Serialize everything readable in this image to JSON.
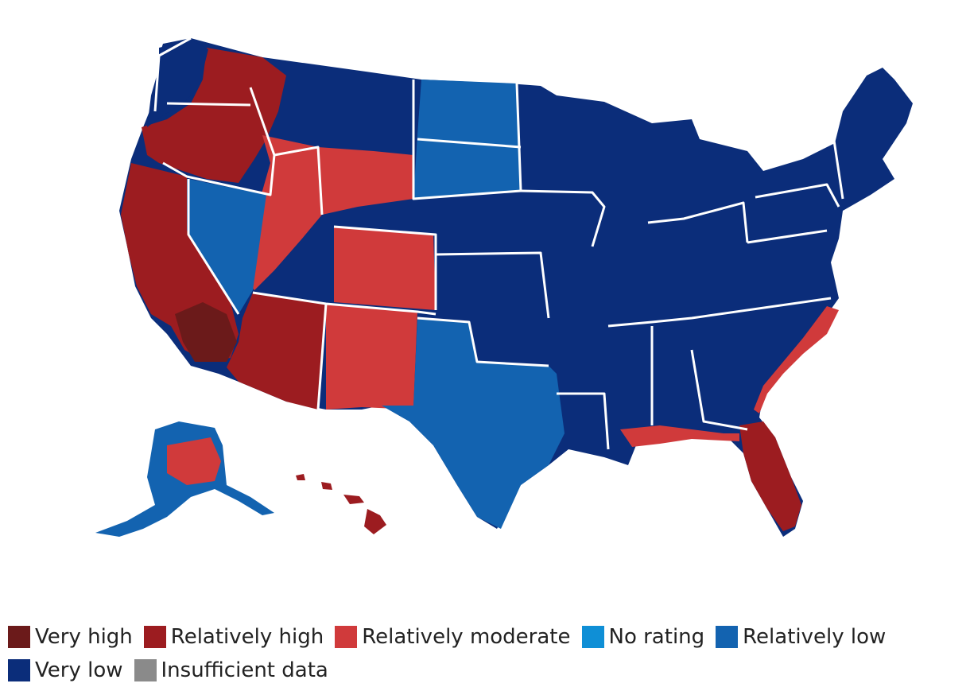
{
  "map": {
    "subject": "United States counties risk rating map",
    "colors": {
      "very_high": "#6b1a1a",
      "relatively_high": "#9c1c20",
      "relatively_moderate": "#d03a3b",
      "no_rating": "#0f8fd6",
      "relatively_low": "#1363b0",
      "very_low": "#0b2d7a",
      "insufficient_data": "#8a8a8a",
      "border": "#ffffff"
    },
    "regions": [
      {
        "name": "pacific-northwest",
        "rating": "relatively_high"
      },
      {
        "name": "california",
        "rating": "relatively_high"
      },
      {
        "name": "southern-california",
        "rating": "very_high"
      },
      {
        "name": "nevada",
        "rating": "relatively_low"
      },
      {
        "name": "intermountain-west",
        "rating": "relatively_moderate"
      },
      {
        "name": "arizona",
        "rating": "relatively_high"
      },
      {
        "name": "new-mexico",
        "rating": "relatively_moderate"
      },
      {
        "name": "northern-plains",
        "rating": "relatively_low"
      },
      {
        "name": "central-plains",
        "rating": "very_low"
      },
      {
        "name": "texas",
        "rating": "relatively_low"
      },
      {
        "name": "midwest",
        "rating": "very_low"
      },
      {
        "name": "southeast",
        "rating": "very_low"
      },
      {
        "name": "florida",
        "rating": "relatively_high"
      },
      {
        "name": "northeast",
        "rating": "very_low"
      },
      {
        "name": "alaska",
        "rating": "relatively_low"
      },
      {
        "name": "hawaii",
        "rating": "relatively_high"
      }
    ]
  },
  "legend": {
    "items": [
      {
        "key": "very_high",
        "label": "Very high",
        "color": "#6b1a1a"
      },
      {
        "key": "relatively_high",
        "label": "Relatively high",
        "color": "#9c1c20"
      },
      {
        "key": "relatively_moderate",
        "label": "Relatively moderate",
        "color": "#d03a3b"
      },
      {
        "key": "no_rating",
        "label": "No rating",
        "color": "#0f8fd6"
      },
      {
        "key": "relatively_low",
        "label": "Relatively low",
        "color": "#1363b0"
      },
      {
        "key": "very_low",
        "label": "Very low",
        "color": "#0b2d7a"
      },
      {
        "key": "insufficient_data",
        "label": "Insufficient data",
        "color": "#8a8a8a"
      }
    ]
  }
}
